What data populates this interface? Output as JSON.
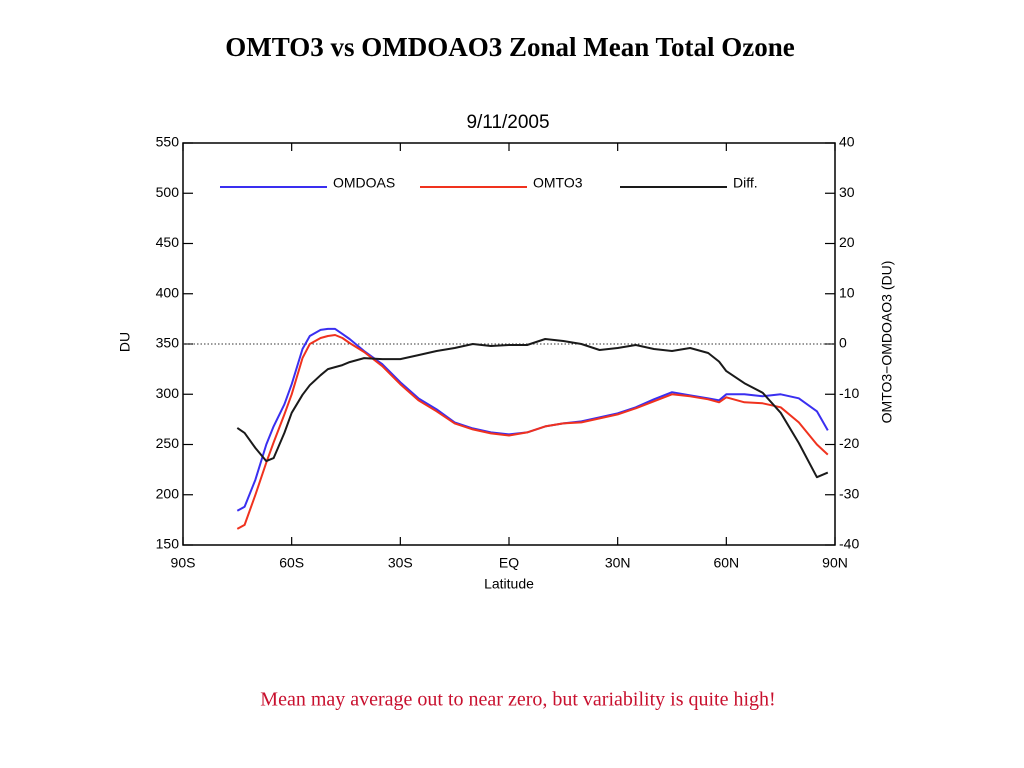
{
  "chart_data": {
    "type": "line",
    "title": "OMTO3 vs OMDOAO3 Zonal Mean Total Ozone",
    "subtitle": "9/11/2005",
    "xlabel": "Latitude",
    "ylabel": "DU",
    "y2label": "OMTO3−OMDOAO3 (DU)",
    "note": "Mean may average out to near zero, but variability is quite high!",
    "x": [
      -75,
      -73,
      -70,
      -67,
      -65,
      -62,
      -60,
      -57,
      -55,
      -52,
      -50,
      -48,
      -46,
      -44,
      -40,
      -35,
      -30,
      -25,
      -20,
      -15,
      -10,
      -5,
      0,
      5,
      10,
      15,
      20,
      25,
      30,
      35,
      40,
      45,
      50,
      55,
      58,
      60,
      65,
      70,
      75,
      80,
      85,
      88
    ],
    "xlim": [
      -90,
      90
    ],
    "xticks": [
      {
        "value": -90,
        "label": "90S"
      },
      {
        "value": -60,
        "label": "60S"
      },
      {
        "value": -30,
        "label": "30S"
      },
      {
        "value": 0,
        "label": "EQ"
      },
      {
        "value": 30,
        "label": "30N"
      },
      {
        "value": 60,
        "label": "60N"
      },
      {
        "value": 90,
        "label": "90N"
      }
    ],
    "ylim": [
      150,
      550
    ],
    "yticks": [
      150,
      200,
      250,
      300,
      350,
      400,
      450,
      500,
      550
    ],
    "y2lim": [
      -40,
      40
    ],
    "y2ticks": [
      -40,
      -30,
      -20,
      -10,
      0,
      10,
      20,
      30,
      40
    ],
    "zero_line": true,
    "series": [
      {
        "name": "OMDOAS",
        "color": "#3a2ff0",
        "values": [
          184,
          188,
          215,
          250,
          268,
          290,
          310,
          345,
          358,
          364,
          365,
          365,
          360,
          355,
          343,
          330,
          312,
          296,
          285,
          272,
          266,
          262,
          260,
          262,
          268,
          271,
          273,
          277,
          281,
          287,
          295,
          302,
          299,
          296,
          294,
          300,
          300,
          298,
          300,
          296,
          283,
          264
        ]
      },
      {
        "name": "OMTO3",
        "color": "#f0321e",
        "values": [
          166,
          170,
          200,
          232,
          252,
          280,
          300,
          336,
          350,
          356,
          358,
          359,
          356,
          351,
          342,
          328,
          310,
          294,
          283,
          271,
          265,
          261,
          259,
          262,
          268,
          271,
          272,
          276,
          280,
          286,
          293,
          300,
          298,
          295,
          292,
          297,
          292,
          291,
          287,
          272,
          250,
          240
        ]
      },
      {
        "name": "Diff.",
        "color": "#1a1a1a",
        "axis": "y2",
        "values": [
          -16.7,
          -17.7,
          -20.7,
          -23.3,
          -22.7,
          -17.7,
          -13.7,
          -10.1,
          -8.2,
          -6.2,
          -5,
          -4.6,
          -4.2,
          -3.6,
          -2.8,
          -3,
          -3,
          -2.2,
          -1.4,
          -0.8,
          0,
          -0.4,
          -0.2,
          -0.2,
          1,
          0.6,
          0,
          -1.2,
          -0.8,
          -0.2,
          -1,
          -1.4,
          -0.8,
          -1.8,
          -3.5,
          -5.4,
          -7.8,
          -9.7,
          -13.7,
          -19.7,
          -26.5,
          -25.6
        ]
      }
    ]
  }
}
